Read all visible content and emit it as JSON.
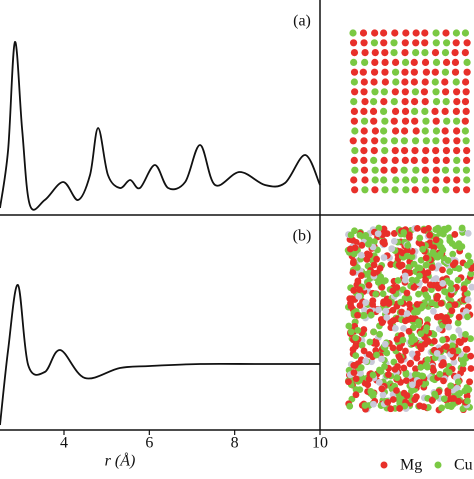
{
  "chart_data": [
    {
      "type": "line",
      "annotation": "(a)",
      "x": [
        2.5,
        2.69,
        2.85,
        3.02,
        3.2,
        3.55,
        3.98,
        4.33,
        4.61,
        4.8,
        5.03,
        5.31,
        5.55,
        5.78,
        6.13,
        6.44,
        6.84,
        7.19,
        7.54,
        8.12,
        8.71,
        9.18,
        9.65,
        10
      ],
      "values": [
        0.1,
        3.0,
        8.4,
        4.0,
        0.25,
        0.5,
        1.4,
        0.5,
        1.75,
        4.1,
        1.75,
        1.1,
        1.5,
        1.1,
        2.25,
        1.1,
        1.4,
        3.25,
        1.25,
        1.9,
        1.25,
        1.35,
        2.75,
        1.25
      ],
      "color": "#111111",
      "xlim": [
        2.5,
        10
      ],
      "ylim": [
        0,
        10.5
      ]
    },
    {
      "type": "line",
      "annotation": "(b)",
      "xlabel": "r (Å)",
      "x": [
        2.5,
        2.69,
        2.92,
        3.16,
        3.55,
        3.91,
        4.49,
        5.31,
        6.02,
        7.19,
        8.59,
        10
      ],
      "values": [
        0,
        3.75,
        7.0,
        3.0,
        2.65,
        3.75,
        2.35,
        2.85,
        2.95,
        3.05,
        3.05,
        3.05
      ],
      "color": "#111111",
      "xlim": [
        2.5,
        10
      ],
      "ylim": [
        0,
        10.5
      ],
      "xticks": [
        4,
        6,
        8,
        10
      ]
    }
  ],
  "atom_legend": [
    {
      "name": "Mg",
      "color": "#e8302a"
    },
    {
      "name": "Cu",
      "color": "#7ac943"
    }
  ]
}
